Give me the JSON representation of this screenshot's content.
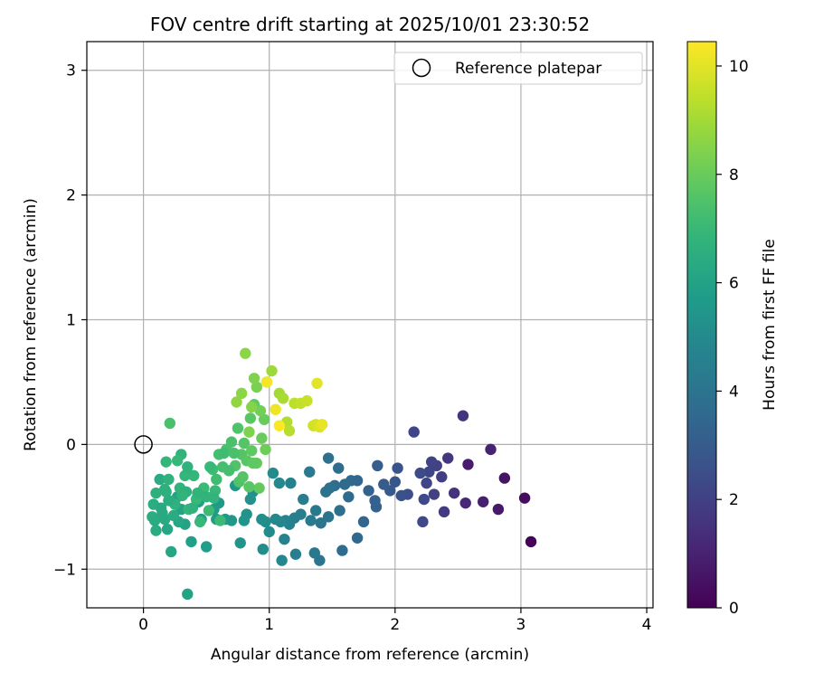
{
  "chart_data": {
    "type": "scatter",
    "title": "FOV centre drift starting at 2025/10/01 23:30:52",
    "xlabel": "Angular distance from reference (arcmin)",
    "ylabel": "Rotation from reference (arcmin)",
    "xlim": [
      -0.45,
      4.05
    ],
    "ylim": [
      -1.31,
      3.23
    ],
    "xticks": [
      0,
      1,
      2,
      3,
      4
    ],
    "yticks": [
      -1,
      0,
      1,
      2,
      3
    ],
    "grid": true,
    "legend": {
      "placement": "top-right",
      "entries": [
        {
          "label": "Reference platepar",
          "marker": "open-circle",
          "x": 0,
          "y": 0
        }
      ]
    },
    "colorbar": {
      "label": "Hours from first FF file",
      "min": 0,
      "max": 10.45,
      "ticks": [
        0,
        2,
        4,
        6,
        8,
        10
      ],
      "colormap": "viridis"
    },
    "series": [
      {
        "points": [
          [
            3.08,
            -0.78,
            0.1
          ],
          [
            3.03,
            -0.43,
            0.3
          ],
          [
            2.87,
            -0.27,
            0.5
          ],
          [
            2.82,
            -0.52,
            0.7
          ],
          [
            2.7,
            -0.46,
            0.9
          ],
          [
            2.76,
            -0.04,
            1.0
          ],
          [
            2.58,
            -0.16,
            0.8
          ],
          [
            2.56,
            -0.47,
            1.2
          ],
          [
            2.54,
            0.23,
            1.6
          ],
          [
            2.47,
            -0.39,
            1.5
          ],
          [
            2.42,
            -0.11,
            1.7
          ],
          [
            2.39,
            -0.54,
            1.8
          ],
          [
            2.37,
            -0.26,
            1.9
          ],
          [
            2.33,
            -0.17,
            2.0
          ],
          [
            2.31,
            -0.4,
            2.0
          ],
          [
            2.29,
            -0.14,
            2.1
          ],
          [
            2.27,
            -0.22,
            2.2
          ],
          [
            2.25,
            -0.31,
            2.2
          ],
          [
            2.23,
            -0.44,
            2.3
          ],
          [
            2.22,
            -0.62,
            2.3
          ],
          [
            2.2,
            -0.23,
            2.4
          ],
          [
            2.15,
            0.1,
            2.2
          ],
          [
            2.1,
            -0.4,
            2.5
          ],
          [
            2.05,
            -0.41,
            2.6
          ],
          [
            2.02,
            -0.19,
            2.7
          ],
          [
            2.0,
            -0.3,
            2.8
          ],
          [
            1.96,
            -0.37,
            2.9
          ],
          [
            1.91,
            -0.32,
            3.0
          ],
          [
            1.86,
            -0.17,
            3.1
          ],
          [
            1.84,
            -0.45,
            3.2
          ],
          [
            1.85,
            -0.5,
            3.2
          ],
          [
            1.79,
            -0.37,
            3.3
          ],
          [
            1.75,
            -0.62,
            3.4
          ],
          [
            1.7,
            -0.29,
            3.4
          ],
          [
            1.7,
            -0.75,
            3.5
          ],
          [
            1.65,
            -0.29,
            3.5
          ],
          [
            1.63,
            -0.42,
            3.6
          ],
          [
            1.6,
            -0.32,
            3.6
          ],
          [
            1.58,
            -0.85,
            3.7
          ],
          [
            1.55,
            -0.19,
            3.7
          ],
          [
            1.56,
            -0.53,
            3.8
          ],
          [
            1.52,
            -0.33,
            3.8
          ],
          [
            1.48,
            -0.35,
            3.9
          ],
          [
            1.47,
            -0.11,
            3.9
          ],
          [
            1.47,
            -0.58,
            4.0
          ],
          [
            1.45,
            -0.38,
            4.0
          ],
          [
            1.41,
            -0.63,
            4.1
          ],
          [
            1.4,
            -0.93,
            4.1
          ],
          [
            1.37,
            -0.53,
            4.2
          ],
          [
            1.36,
            -0.87,
            4.2
          ],
          [
            1.33,
            -0.61,
            4.3
          ],
          [
            1.32,
            -0.22,
            4.3
          ],
          [
            1.27,
            -0.44,
            4.4
          ],
          [
            1.25,
            -0.56,
            4.4
          ],
          [
            1.21,
            -0.88,
            4.5
          ],
          [
            1.2,
            -0.59,
            4.5
          ],
          [
            1.17,
            -0.31,
            4.6
          ],
          [
            1.16,
            -0.64,
            4.6
          ],
          [
            1.13,
            -0.61,
            4.7
          ],
          [
            1.12,
            -0.76,
            4.7
          ],
          [
            1.1,
            -0.93,
            4.8
          ],
          [
            1.09,
            -0.62,
            4.8
          ],
          [
            1.08,
            -0.31,
            4.9
          ],
          [
            1.05,
            -0.6,
            4.9
          ],
          [
            1.03,
            -0.23,
            5.0
          ],
          [
            1.0,
            -0.7,
            5.0
          ],
          [
            0.97,
            -0.62,
            5.1
          ],
          [
            0.95,
            -0.84,
            5.1
          ],
          [
            0.94,
            -0.6,
            5.2
          ],
          [
            0.87,
            -0.38,
            5.2
          ],
          [
            0.85,
            -0.44,
            5.3
          ],
          [
            0.82,
            -0.56,
            5.3
          ],
          [
            0.8,
            -0.61,
            5.4
          ],
          [
            0.77,
            -0.79,
            5.4
          ],
          [
            0.73,
            -0.33,
            5.5
          ],
          [
            0.7,
            -0.61,
            5.5
          ],
          [
            0.65,
            -0.6,
            5.6
          ],
          [
            0.6,
            -0.47,
            5.6
          ],
          [
            0.58,
            -0.6,
            5.7
          ],
          [
            0.56,
            -0.52,
            5.7
          ],
          [
            0.5,
            -0.82,
            5.8
          ],
          [
            0.46,
            -0.6,
            5.8
          ],
          [
            0.44,
            -0.46,
            5.9
          ],
          [
            0.38,
            -0.78,
            5.9
          ],
          [
            0.35,
            -1.2,
            6.0
          ],
          [
            0.33,
            -0.64,
            6.0
          ],
          [
            0.3,
            -0.52,
            6.1
          ],
          [
            0.27,
            -0.42,
            6.1
          ],
          [
            0.22,
            -0.86,
            6.2
          ],
          [
            0.19,
            -0.68,
            6.2
          ],
          [
            0.17,
            -0.6,
            6.3
          ],
          [
            0.15,
            -0.55,
            6.3
          ],
          [
            0.13,
            -0.28,
            6.4
          ],
          [
            0.1,
            -0.69,
            6.4
          ],
          [
            0.08,
            -0.48,
            6.5
          ],
          [
            0.07,
            -0.58,
            6.5
          ],
          [
            0.1,
            -0.39,
            6.6
          ],
          [
            0.17,
            -0.36,
            6.6
          ],
          [
            0.2,
            -0.28,
            6.7
          ],
          [
            0.25,
            -0.48,
            6.7
          ],
          [
            0.29,
            -0.35,
            6.8
          ],
          [
            0.3,
            -0.08,
            6.8
          ],
          [
            0.36,
            -0.52,
            6.9
          ],
          [
            0.4,
            -0.25,
            6.9
          ],
          [
            0.42,
            -0.44,
            7.0
          ],
          [
            0.45,
            -0.62,
            7.0
          ],
          [
            0.48,
            -0.35,
            7.1
          ],
          [
            0.52,
            -0.53,
            7.1
          ],
          [
            0.55,
            -0.2,
            7.2
          ],
          [
            0.58,
            -0.28,
            7.2
          ],
          [
            0.6,
            -0.08,
            7.3
          ],
          [
            0.63,
            -0.18,
            7.3
          ],
          [
            0.66,
            -0.04,
            7.4
          ],
          [
            0.7,
            0.02,
            7.4
          ],
          [
            0.73,
            -0.17,
            7.5
          ],
          [
            0.75,
            0.13,
            7.5
          ],
          [
            0.78,
            -0.08,
            7.6
          ],
          [
            0.8,
            0.01,
            7.6
          ],
          [
            0.82,
            -0.13,
            7.7
          ],
          [
            0.85,
            0.21,
            7.7
          ],
          [
            0.86,
            -0.05,
            7.8
          ],
          [
            0.88,
            0.32,
            7.8
          ],
          [
            0.9,
            -0.15,
            7.9
          ],
          [
            0.92,
            -0.35,
            7.9
          ],
          [
            0.94,
            0.05,
            8.0
          ],
          [
            0.96,
            0.2,
            8.0
          ],
          [
            0.97,
            -0.04,
            8.1
          ],
          [
            0.93,
            0.27,
            8.2
          ],
          [
            0.9,
            0.46,
            8.3
          ],
          [
            0.88,
            0.53,
            8.4
          ],
          [
            0.86,
            0.3,
            8.5
          ],
          [
            0.84,
            0.1,
            8.4
          ],
          [
            0.81,
            0.73,
            8.6
          ],
          [
            0.78,
            0.41,
            8.6
          ],
          [
            0.74,
            0.34,
            8.7
          ],
          [
            0.98,
            0.5,
            8.8
          ],
          [
            1.02,
            0.59,
            8.9
          ],
          [
            1.08,
            0.41,
            9.0
          ],
          [
            1.11,
            0.37,
            9.1
          ],
          [
            1.14,
            0.18,
            9.2
          ],
          [
            1.16,
            0.11,
            9.3
          ],
          [
            1.2,
            0.33,
            9.4
          ],
          [
            1.25,
            0.33,
            9.5
          ],
          [
            1.3,
            0.35,
            9.6
          ],
          [
            1.35,
            0.15,
            9.7
          ],
          [
            1.37,
            0.16,
            9.8
          ],
          [
            1.4,
            0.14,
            9.9
          ],
          [
            1.38,
            0.49,
            10.0
          ],
          [
            1.42,
            0.16,
            10.1
          ],
          [
            1.05,
            0.28,
            10.2
          ],
          [
            0.98,
            0.5,
            10.3
          ],
          [
            1.08,
            0.15,
            10.4
          ],
          [
            0.28,
            -0.62,
            6.2
          ],
          [
            0.2,
            -0.45,
            6.5
          ],
          [
            0.24,
            -0.57,
            6.4
          ],
          [
            0.09,
            -0.61,
            6.4
          ],
          [
            0.14,
            -0.51,
            6.3
          ],
          [
            0.18,
            -0.38,
            6.6
          ],
          [
            0.34,
            -0.38,
            6.6
          ],
          [
            0.39,
            -0.51,
            6.7
          ],
          [
            0.43,
            -0.39,
            6.8
          ],
          [
            0.5,
            -0.42,
            6.8
          ],
          [
            0.53,
            -0.18,
            7.0
          ],
          [
            0.57,
            -0.37,
            7.0
          ],
          [
            0.61,
            -0.61,
            7.1
          ],
          [
            0.64,
            -0.07,
            7.2
          ],
          [
            0.68,
            -0.21,
            7.3
          ],
          [
            0.72,
            -0.07,
            7.4
          ],
          [
            0.76,
            -0.3,
            7.5
          ],
          [
            0.79,
            -0.26,
            7.6
          ],
          [
            0.84,
            -0.34,
            7.7
          ],
          [
            0.87,
            -0.15,
            7.8
          ],
          [
            0.33,
            -0.25,
            6.9
          ],
          [
            0.31,
            -0.41,
            6.8
          ],
          [
            0.21,
            0.17,
            7.4
          ],
          [
            0.27,
            -0.13,
            7.0
          ],
          [
            0.18,
            -0.14,
            6.9
          ],
          [
            0.35,
            -0.18,
            6.7
          ],
          [
            0.56,
            -0.43,
            6.8
          ]
        ]
      }
    ]
  }
}
